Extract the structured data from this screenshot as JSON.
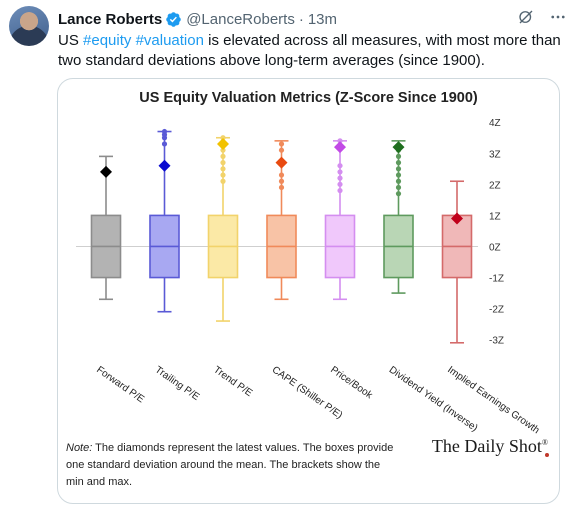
{
  "tweet": {
    "author_name": "Lance Roberts",
    "handle": "@LanceRoberts",
    "separator": "·",
    "time": "13m",
    "text_parts": [
      {
        "type": "text",
        "value": "US "
      },
      {
        "type": "hashtag",
        "value": "#equity"
      },
      {
        "type": "text",
        "value": " "
      },
      {
        "type": "hashtag",
        "value": "#valuation"
      },
      {
        "type": "text",
        "value": " is elevated across all measures, with most more than two standard deviations above long-term averages (since 1900)."
      }
    ],
    "icons": [
      "verified-badge-icon",
      "grok-icon",
      "more-icon"
    ]
  },
  "media": {
    "note_label": "Note:",
    "note_text": " The diamonds represent the latest values. The boxes provide one standard deviation around the mean. The brackets show the min and max.",
    "brand": "The Daily Shot",
    "brand_mark": "®"
  },
  "chart_data": {
    "type": "box",
    "title": "US Equity Valuation Metrics (Z-Score Since 1900)",
    "ytick_labels": [
      "4Z",
      "3Z",
      "2Z",
      "1Z",
      "0Z",
      "-1Z",
      "-2Z",
      "-3Z"
    ],
    "yticks": [
      4,
      3,
      2,
      1,
      0,
      -1,
      -2,
      -3
    ],
    "ylim": [
      -3.3,
      4.2
    ],
    "series": [
      {
        "name": "Forward P/E",
        "min": -1.7,
        "q1": -1,
        "median": 0,
        "q3": 1,
        "max": 2.9,
        "latest": 2.4,
        "outliers": [],
        "color": "#8c8c8c",
        "fill": "#b3b3b3",
        "diamond": "#000000"
      },
      {
        "name": "Trailing P/E",
        "min": -2.1,
        "q1": -1,
        "median": 0,
        "q3": 1,
        "max": 3.7,
        "latest": 2.6,
        "outliers": [
          3.3,
          3.5,
          3.6,
          3.7
        ],
        "color": "#5a5ad6",
        "fill": "#a8a8f2",
        "diamond": "#0a0ad0"
      },
      {
        "name": "Trend P/E",
        "min": -2.4,
        "q1": -1,
        "median": 0,
        "q3": 1,
        "max": 3.5,
        "latest": 3.3,
        "outliers": [
          2.1,
          2.3,
          2.5,
          2.7,
          2.9,
          3.1,
          3.5
        ],
        "color": "#f2d36b",
        "fill": "#fbe9a6",
        "diamond": "#f2c200"
      },
      {
        "name": "CAPE (Shiller P/E)",
        "min": -1.7,
        "q1": -1,
        "median": 0,
        "q3": 1,
        "max": 3.4,
        "latest": 2.7,
        "outliers": [
          1.9,
          2.1,
          2.3,
          3.1,
          3.3
        ],
        "color": "#f08a5a",
        "fill": "#f8c3a6",
        "diamond": "#e84a10"
      },
      {
        "name": "Price/Book",
        "min": -1.7,
        "q1": -1,
        "median": 0,
        "q3": 1,
        "max": 3.4,
        "latest": 3.2,
        "outliers": [
          1.8,
          2.0,
          2.2,
          2.4,
          2.6,
          3.4
        ],
        "color": "#d48ef0",
        "fill": "#f0c8fb",
        "diamond": "#c24ae6"
      },
      {
        "name": "Dividend Yield (Inverse)",
        "min": -1.5,
        "q1": -1,
        "median": 0,
        "q3": 1,
        "max": 3.4,
        "latest": 3.2,
        "outliers": [
          1.7,
          1.9,
          2.1,
          2.3,
          2.5,
          2.7,
          2.9,
          3.1
        ],
        "color": "#5e9a5e",
        "fill": "#b9d6b5",
        "diamond": "#1e6e1e"
      },
      {
        "name": "Implied Earnings Growth",
        "min": -3.1,
        "q1": -1,
        "median": 0,
        "q3": 1,
        "max": 2.1,
        "latest": 0.9,
        "outliers": [],
        "color": "#d46a6a",
        "fill": "#f0b8b8",
        "diamond": "#c0001a"
      }
    ]
  }
}
